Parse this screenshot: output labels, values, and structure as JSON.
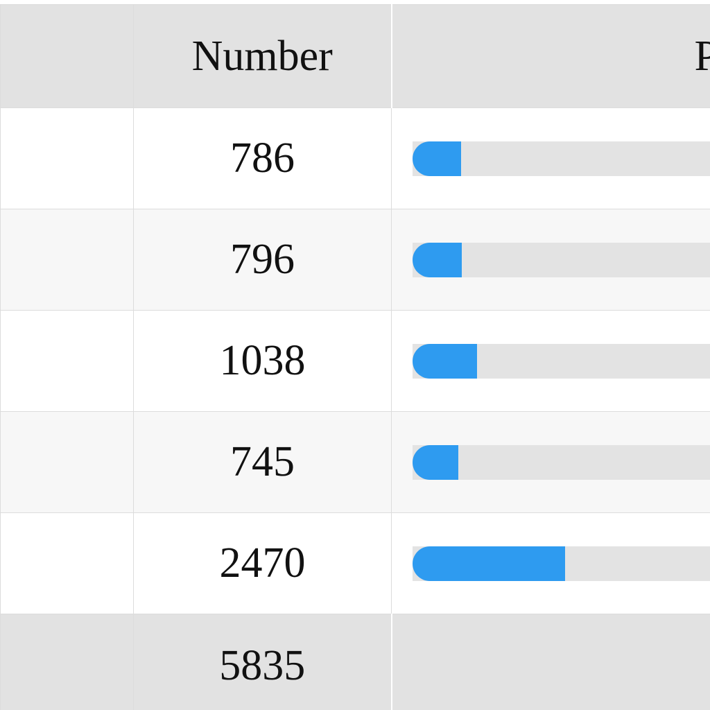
{
  "table": {
    "headers": {
      "label": "",
      "number": "Number",
      "percent": "P"
    },
    "rows": [
      {
        "label": "",
        "number": "786",
        "share": 0.1347
      },
      {
        "label": "",
        "number": "796",
        "share": 0.1364
      },
      {
        "label": "",
        "number": "1038",
        "share": 0.1779
      },
      {
        "label": "",
        "number": "745",
        "share": 0.1277
      },
      {
        "label": "",
        "number": "2470",
        "share": 0.4233
      }
    ],
    "total": {
      "label": "",
      "number": "5835"
    }
  },
  "colors": {
    "bar_fill": "#2e9bf0",
    "bar_track": "#e3e3e3",
    "header_bg": "#e2e2e2"
  }
}
